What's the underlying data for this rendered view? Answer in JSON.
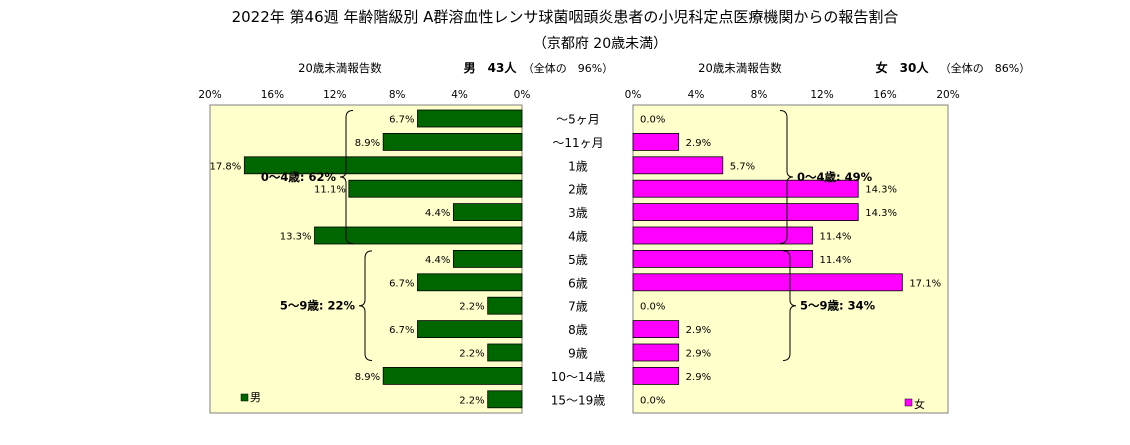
{
  "chart_data": {
    "type": "bar",
    "title": "2022年 第46週 年齢階級別 A群溶血性レンサ球菌咽頭炎患者の小児科定点医療機関からの報告割合",
    "subtitle": "（京都府 20歳未満）",
    "categories": [
      "～5ヶ月",
      "～11ヶ月",
      "1歳",
      "2歳",
      "3歳",
      "4歳",
      "5歳",
      "6歳",
      "7歳",
      "8歳",
      "9歳",
      "10～14歳",
      "15～19歳"
    ],
    "xlim": [
      0,
      20
    ],
    "tick_values": [
      0,
      4,
      8,
      12,
      16,
      20
    ],
    "tick_suffix": "%",
    "colors": {
      "male": "#006600",
      "female": "#ff00ff",
      "plot_bg_male": "#ffffcc",
      "plot_bg_female": "#ffffcc"
    },
    "male": {
      "header_label": "20歳未満報告数",
      "summary_label": "男　43人",
      "summary_note": "（全体の　96%）",
      "legend": "男",
      "values": [
        6.7,
        8.9,
        17.8,
        11.1,
        4.4,
        13.3,
        4.4,
        6.7,
        2.2,
        6.7,
        2.2,
        8.9,
        2.2
      ],
      "value_labels": [
        "6.7%",
        "8.9%",
        "17.8%",
        "11.1%",
        "4.4%",
        "13.3%",
        "4.4%",
        "6.7%",
        "2.2%",
        "6.7%",
        "2.2%",
        "8.9%",
        "2.2%"
      ],
      "groups": [
        {
          "label": "0～4歳: 62%",
          "from": 0,
          "to": 5
        },
        {
          "label": "5～9歳: 22%",
          "from": 6,
          "to": 10
        }
      ]
    },
    "female": {
      "header_label": "20歳未満報告数",
      "summary_label": "女　30人",
      "summary_note": "（全体の　86%）",
      "legend": "女",
      "values": [
        0.0,
        2.9,
        5.7,
        14.3,
        14.3,
        11.4,
        11.4,
        17.1,
        0.0,
        2.9,
        2.9,
        2.9,
        0.0
      ],
      "value_labels": [
        "0.0%",
        "2.9%",
        "5.7%",
        "14.3%",
        "14.3%",
        "11.4%",
        "11.4%",
        "17.1%",
        "0.0%",
        "2.9%",
        "2.9%",
        "2.9%",
        "0.0%"
      ],
      "groups": [
        {
          "label": "0～4歳: 49%",
          "from": 0,
          "to": 5
        },
        {
          "label": "5～9歳: 34%",
          "from": 6,
          "to": 10
        }
      ]
    }
  }
}
